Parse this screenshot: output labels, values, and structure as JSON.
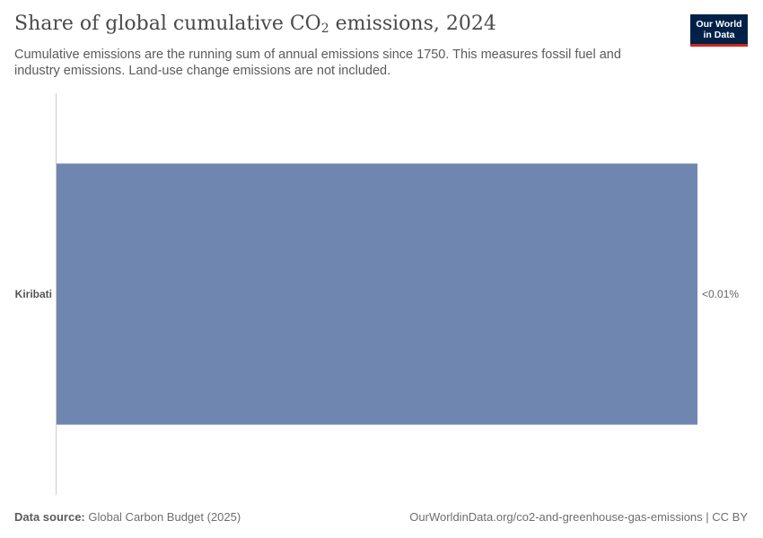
{
  "header": {
    "title_main": "Share of global cumulative CO",
    "title_sub": "2",
    "title_rest": " emissions, 2024",
    "subtitle": "Cumulative emissions are the running sum of annual emissions since 1750. This measures fossil fuel and industry emissions. Land-use change emissions are not included."
  },
  "logo": {
    "line1": "Our World",
    "line2": "in Data"
  },
  "chart_data": {
    "type": "bar",
    "orientation": "horizontal",
    "title": "Share of global cumulative CO₂ emissions, 2024",
    "categories": [
      "Kiribati"
    ],
    "values": [
      0.001
    ],
    "value_labels": [
      "<0.01%"
    ],
    "unit": "%",
    "bar_color": "#6f87b0"
  },
  "footer": {
    "source_label": "Data source:",
    "source_text": " Global Carbon Budget (2025)",
    "url": "OurWorldinData.org/co2-and-greenhouse-gas-emissions | CC BY"
  }
}
